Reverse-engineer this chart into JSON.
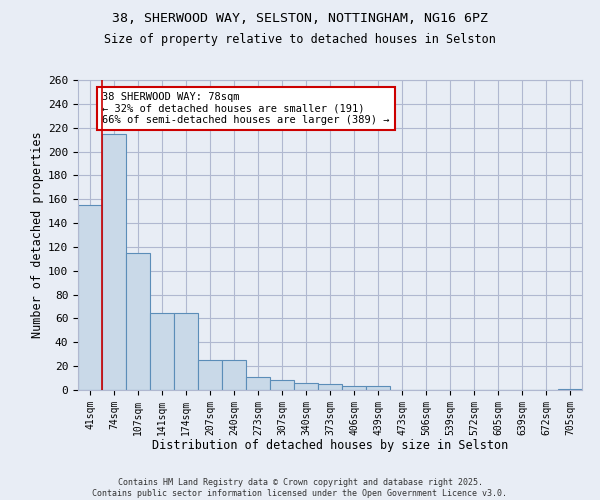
{
  "title1": "38, SHERWOOD WAY, SELSTON, NOTTINGHAM, NG16 6PZ",
  "title2": "Size of property relative to detached houses in Selston",
  "xlabel": "Distribution of detached houses by size in Selston",
  "ylabel": "Number of detached properties",
  "bar_labels": [
    "41sqm",
    "74sqm",
    "107sqm",
    "141sqm",
    "174sqm",
    "207sqm",
    "240sqm",
    "273sqm",
    "307sqm",
    "340sqm",
    "373sqm",
    "406sqm",
    "439sqm",
    "473sqm",
    "506sqm",
    "539sqm",
    "572sqm",
    "605sqm",
    "639sqm",
    "672sqm",
    "705sqm"
  ],
  "bar_values": [
    155,
    215,
    115,
    65,
    65,
    25,
    25,
    11,
    8,
    6,
    5,
    3,
    3,
    0,
    0,
    0,
    0,
    0,
    0,
    0,
    1
  ],
  "bar_color": "#c9d9e8",
  "bar_edge_color": "#5b8db8",
  "grid_color": "#b0b8d0",
  "bg_color": "#e8edf5",
  "red_line_x": 0.5,
  "annotation_text": "38 SHERWOOD WAY: 78sqm\n← 32% of detached houses are smaller (191)\n66% of semi-detached houses are larger (389) →",
  "annotation_box_color": "#ffffff",
  "annotation_border_color": "#cc0000",
  "copyright_text": "Contains HM Land Registry data © Crown copyright and database right 2025.\nContains public sector information licensed under the Open Government Licence v3.0.",
  "ylim": [
    0,
    260
  ],
  "yticks": [
    0,
    20,
    40,
    60,
    80,
    100,
    120,
    140,
    160,
    180,
    200,
    220,
    240,
    260
  ]
}
